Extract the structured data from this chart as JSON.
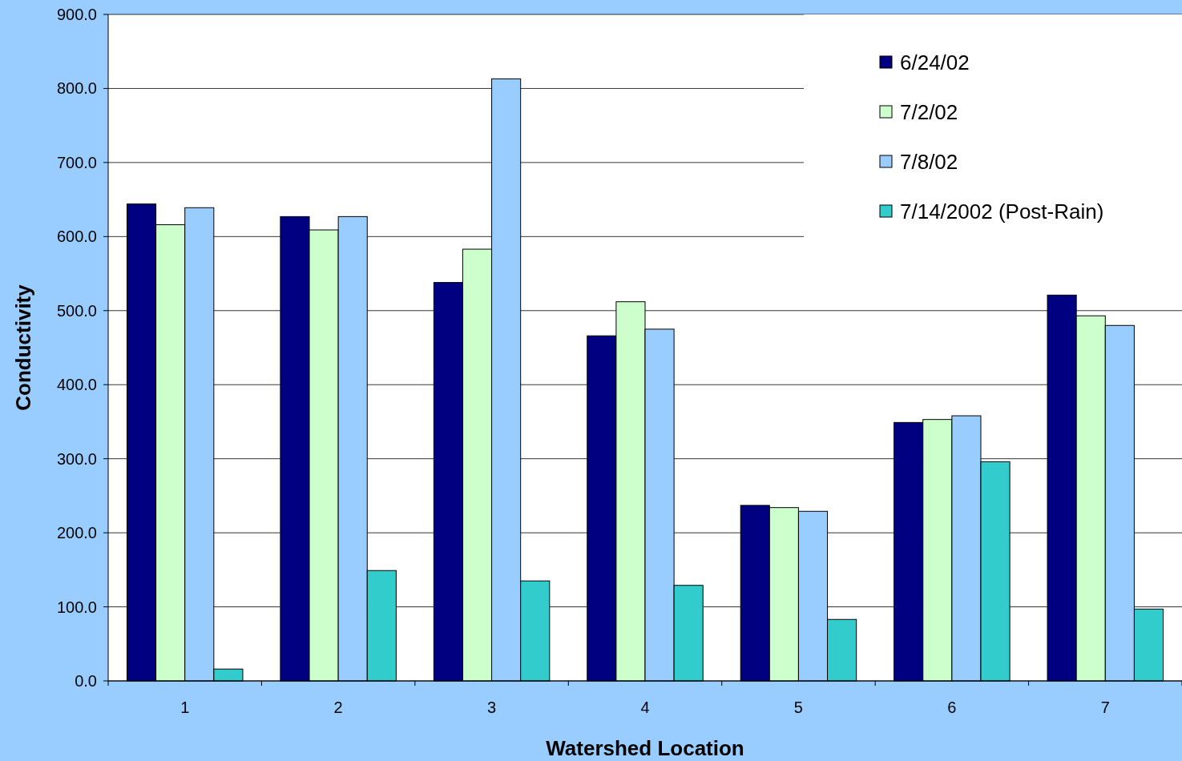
{
  "chart_data": {
    "type": "bar",
    "xlabel": "Watershed Location",
    "ylabel": "Conductivity",
    "categories": [
      "1",
      "2",
      "3",
      "4",
      "5",
      "6",
      "7"
    ],
    "series": [
      {
        "name": "6/24/02",
        "color": "#000080",
        "values": [
          644,
          627,
          538,
          466,
          237,
          349,
          521
        ]
      },
      {
        "name": "7/2/02",
        "color": "#ccffcc",
        "values": [
          616,
          609,
          583,
          512,
          234,
          353,
          493
        ]
      },
      {
        "name": "7/8/02",
        "color": "#99ccff",
        "values": [
          639,
          627,
          813,
          475,
          229,
          358,
          480
        ]
      },
      {
        "name": "7/14/2002 (Post-Rain)",
        "color": "#33cccc",
        "values": [
          16,
          149,
          135,
          129,
          83,
          296,
          97
        ]
      }
    ],
    "ylim": [
      0,
      900
    ],
    "yticks": [
      {
        "value": 0,
        "label": "0.0"
      },
      {
        "value": 100,
        "label": "100.0"
      },
      {
        "value": 200,
        "label": "200.0"
      },
      {
        "value": 300,
        "label": "300.0"
      },
      {
        "value": 400,
        "label": "400.0"
      },
      {
        "value": 500,
        "label": "500.0"
      },
      {
        "value": 600,
        "label": "600.0"
      },
      {
        "value": 700,
        "label": "700.0"
      },
      {
        "value": 800,
        "label": "800.0"
      },
      {
        "value": 900,
        "label": "900.0"
      }
    ],
    "grid": "y",
    "legend": "top right"
  }
}
